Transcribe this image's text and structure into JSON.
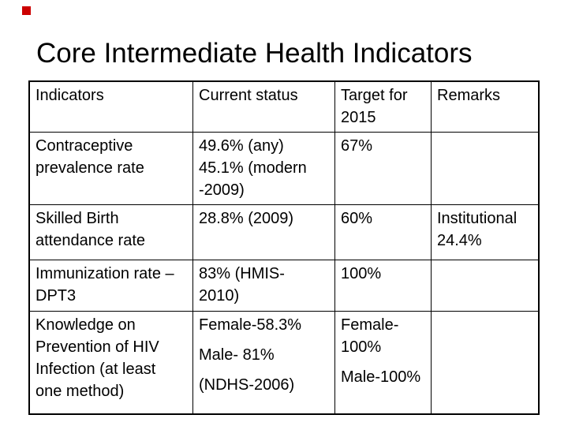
{
  "slide": {
    "title": "Core Intermediate Health Indicators",
    "decoration": {
      "red_square_color": "#cc0000"
    },
    "background_color": "#ffffff",
    "text_color": "#000000"
  },
  "table": {
    "headers": [
      "Indicators",
      "Current status",
      "Target for 2015",
      "Remarks"
    ],
    "rows": [
      {
        "indicator": [
          "Contraceptive prevalence rate"
        ],
        "current_status": [
          "49.6% (any)",
          "45.1% (modern -2009)"
        ],
        "target_2015": [
          "67%"
        ],
        "remarks": []
      },
      {
        "indicator": [
          "Skilled Birth attendance rate"
        ],
        "current_status": [
          "28.8% (2009)"
        ],
        "target_2015": [
          "60%"
        ],
        "remarks": [
          "Institutional 24.4%"
        ]
      },
      {
        "indicator": [
          "Immunization rate –DPT3"
        ],
        "current_status": [
          "83% (HMIS-2010)"
        ],
        "target_2015": [
          "100%"
        ],
        "remarks": []
      },
      {
        "indicator": [
          "Knowledge on Prevention of HIV Infection (at least one method)"
        ],
        "current_status": [
          "Female-58.3%",
          "Male- 81%",
          "(NDHS-2006)"
        ],
        "target_2015": [
          "Female-100%",
          "Male-100%"
        ],
        "remarks": []
      }
    ]
  }
}
